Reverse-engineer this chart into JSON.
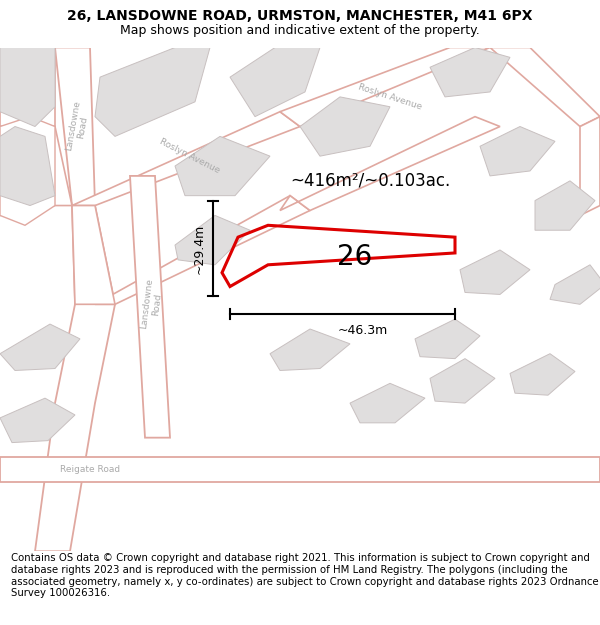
{
  "title_line1": "26, LANSDOWNE ROAD, URMSTON, MANCHESTER, M41 6PX",
  "title_line2": "Map shows position and indicative extent of the property.",
  "footer_text": "Contains OS data © Crown copyright and database right 2021. This information is subject to Crown copyright and database rights 2023 and is reproduced with the permission of HM Land Registry. The polygons (including the associated geometry, namely x, y co-ordinates) are subject to Crown copyright and database rights 2023 Ordnance Survey 100026316.",
  "map_bg": "#f5f3f3",
  "road_edge_color": "#e0a8a0",
  "road_fill": "#ffffff",
  "block_fill": "#e0dede",
  "block_edge": "#c8c0c0",
  "highlight_color": "#dd0000",
  "label_color": "#aaaaaa",
  "label_26": "26",
  "area_label": "~416m²/~0.103ac.",
  "dim_width": "~46.3m",
  "dim_height": "~29.4m",
  "title_fontsize": 10,
  "subtitle_fontsize": 9,
  "footer_fontsize": 7.3,
  "map_xlim": [
    0,
    600
  ],
  "map_ylim": [
    0,
    510
  ]
}
